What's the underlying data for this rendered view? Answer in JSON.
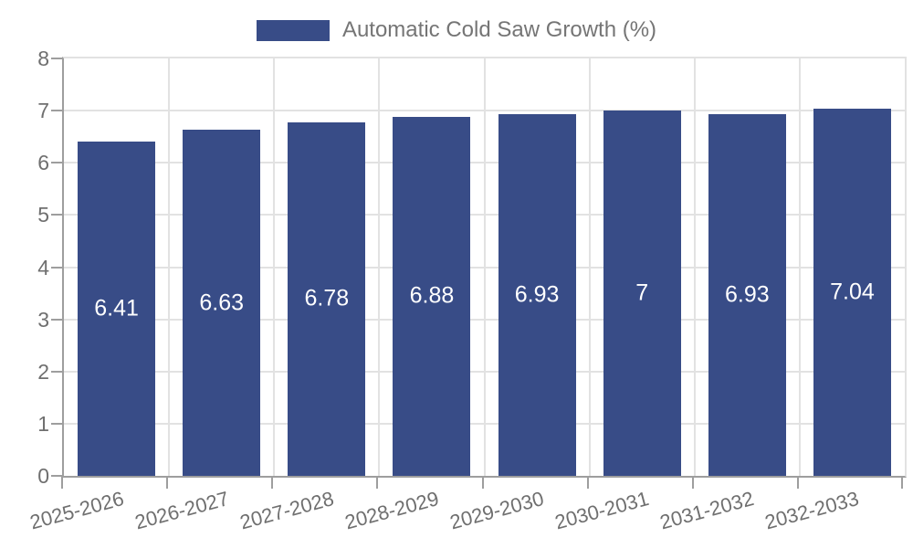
{
  "chart_data": {
    "type": "bar",
    "title": "",
    "legend": {
      "label": "Automatic Cold Saw Growth (%)",
      "position": "top"
    },
    "categories": [
      "2025-2026",
      "2026-2027",
      "2027-2028",
      "2028-2029",
      "2029-2030",
      "2030-2031",
      "2031-2032",
      "2032-2033"
    ],
    "values": [
      6.41,
      6.63,
      6.78,
      6.88,
      6.93,
      7,
      6.93,
      7.04
    ],
    "value_labels": [
      "6.41",
      "6.63",
      "6.78",
      "6.88",
      "6.93",
      "7",
      "6.93",
      "7.04"
    ],
    "xlabel": "",
    "ylabel": "",
    "ylim": [
      0,
      8
    ],
    "yticks": [
      0,
      1,
      2,
      3,
      4,
      5,
      6,
      7,
      8
    ],
    "grid": true,
    "grid_lines": "horizontal and vertical at category boundaries",
    "value_label_position": "center of bar",
    "colors": {
      "bar": "#384C87",
      "grid": "#E2E2E2",
      "axis": "#9E9E9E",
      "tick_label": "#6F6F6F",
      "value_label": "#FFFFFF",
      "legend_text": "#757575",
      "background": "#FFFFFF"
    }
  }
}
